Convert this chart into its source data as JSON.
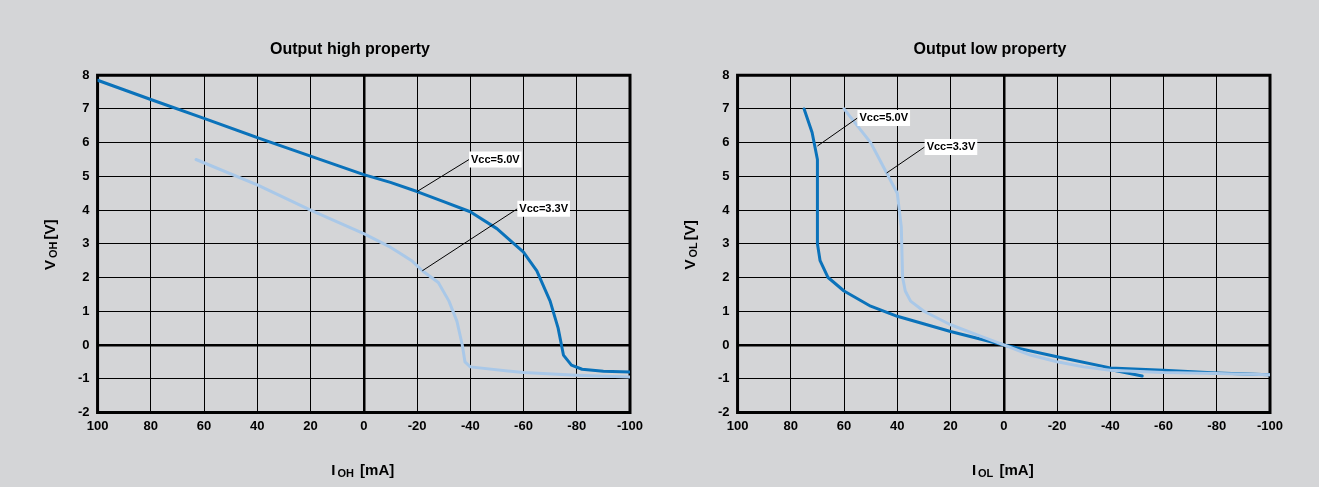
{
  "chart_data": [
    {
      "type": "line",
      "title": "Output high property",
      "xlabel": "I$_{OH}$ [mA]",
      "ylabel": "V$_{OH}$[V]",
      "xlim": [
        100,
        -100
      ],
      "xticks": [
        100,
        80,
        60,
        40,
        20,
        0,
        -20,
        -40,
        -60,
        -80,
        -100
      ],
      "ylim": [
        -2,
        8
      ],
      "yticks": [
        -2,
        -1,
        0,
        1,
        2,
        3,
        4,
        5,
        6,
        7,
        8
      ],
      "grid": true,
      "legend": false,
      "marker": "none",
      "line_style": "solid",
      "annotations": [
        {
          "text": "Vcc=5.0V",
          "x": -20,
          "y": 4.55
        },
        {
          "text": "Vcc=3.3V",
          "x": -22,
          "y": 2.2
        }
      ],
      "series": [
        {
          "color": "#0a72ba",
          "x": [
            100,
            80,
            60,
            40,
            20,
            0,
            -10,
            -20,
            -30,
            -40,
            -50,
            -60,
            -65,
            -70,
            -73,
            -75,
            -78,
            -82,
            -90,
            -100
          ],
          "values": [
            7.85,
            7.28,
            6.72,
            6.15,
            5.6,
            5.05,
            4.82,
            4.55,
            4.25,
            3.95,
            3.45,
            2.75,
            2.2,
            1.3,
            0.5,
            -0.3,
            -0.6,
            -0.72,
            -0.78,
            -0.8
          ]
        },
        {
          "color": "#a9c8e8",
          "x": [
            63,
            40,
            20,
            0,
            -10,
            -18,
            -22,
            -28,
            -32,
            -35,
            -37,
            -38,
            -40,
            -60,
            -80,
            -100
          ],
          "values": [
            5.5,
            4.75,
            4.0,
            3.3,
            2.9,
            2.5,
            2.2,
            1.85,
            1.3,
            0.7,
            0,
            -0.5,
            -0.65,
            -0.82,
            -0.9,
            -0.95
          ]
        }
      ]
    },
    {
      "type": "line",
      "title": "Output low property",
      "xlabel": "I$_{OL}$ [mA]",
      "ylabel": "V$_{OL}$[V]",
      "xlim": [
        100,
        -100
      ],
      "xticks": [
        100,
        80,
        60,
        40,
        20,
        0,
        -20,
        -40,
        -60,
        -80,
        -100
      ],
      "ylim": [
        -2,
        8
      ],
      "yticks": [
        -2,
        -1,
        0,
        1,
        2,
        3,
        4,
        5,
        6,
        7,
        8
      ],
      "grid": true,
      "legend": false,
      "marker": "none",
      "line_style": "solid",
      "annotations": [
        {
          "text": "Vcc=5.0V",
          "x": 70,
          "y": 5.9
        },
        {
          "text": "Vcc=3.3V",
          "x": 44,
          "y": 5.1
        }
      ],
      "series": [
        {
          "color": "#a9c8e8",
          "x": [
            60,
            50,
            44,
            40,
            38.5,
            38,
            37,
            35,
            30,
            20,
            10,
            0,
            -10,
            -20,
            -30,
            -40,
            -60,
            -80,
            -100
          ],
          "values": [
            7,
            6,
            5.1,
            4.5,
            3.5,
            2,
            1.6,
            1.3,
            1.0,
            0.6,
            0.3,
            0,
            -0.3,
            -0.5,
            -0.65,
            -0.75,
            -0.82,
            -0.85,
            -0.88
          ]
        },
        {
          "color": "#0a72ba",
          "x": [
            75,
            72,
            70,
            70,
            69,
            66,
            60,
            50,
            40,
            20,
            0,
            -20,
            -40,
            -60,
            -80,
            -100
          ],
          "values": [
            7,
            6.3,
            5.5,
            3,
            2.5,
            2,
            1.6,
            1.15,
            0.85,
            0.4,
            0,
            -0.35,
            -0.68,
            -0.75,
            -0.83,
            -0.88
          ]
        },
        {
          "color": "#0a72ba",
          "x": [
            -38,
            -52
          ],
          "values": [
            -0.7,
            -0.92
          ]
        }
      ]
    }
  ]
}
